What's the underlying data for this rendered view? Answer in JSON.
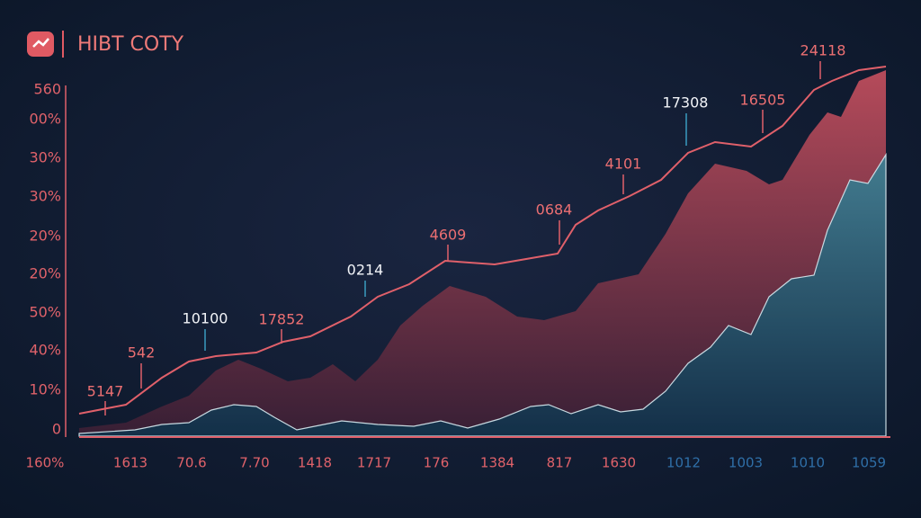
{
  "header": {
    "title": "HIBT COTY"
  },
  "y_axis_labels": [
    "560",
    "00%",
    "30%",
    "30%",
    "20%",
    "20%",
    "50%",
    "40%",
    "10%",
    "0"
  ],
  "x_axis_labels": [
    "160%",
    "1613",
    "70.6",
    "7.70",
    "1418",
    "1717",
    "176",
    "1384",
    "817",
    "1630",
    "1012",
    "1003",
    "1010",
    "1059"
  ],
  "annotations": [
    "5147",
    "542",
    "10100",
    "17852",
    "0214",
    "4609",
    "0684",
    "4101",
    "17308",
    "16505",
    "24118"
  ]
}
